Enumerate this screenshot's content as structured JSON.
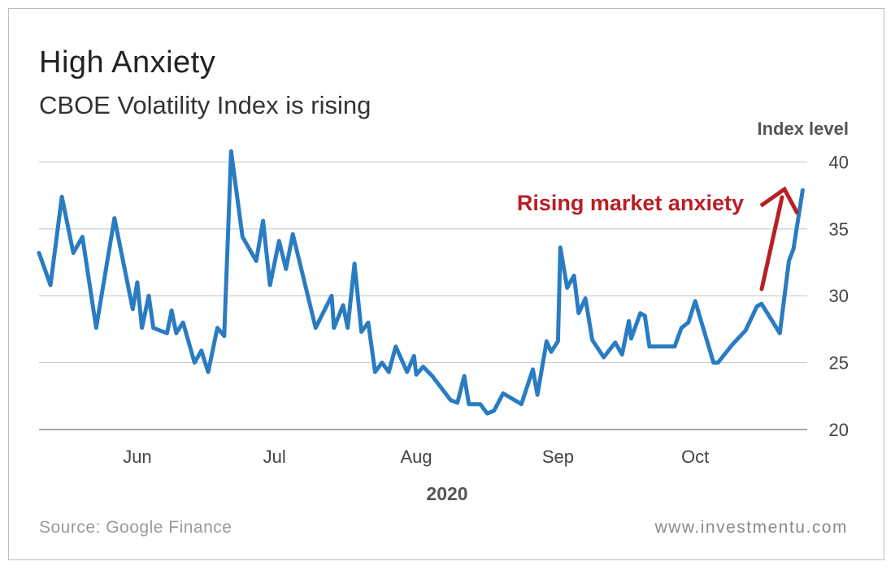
{
  "title": "High Anxiety",
  "subtitle": "CBOE Volatility Index is rising",
  "source": "Source: Google Finance",
  "website": "www.investmentu.com",
  "chart_data": {
    "type": "line",
    "ylabel": "Index level",
    "xlabel": "2020",
    "ylim": [
      20,
      41
    ],
    "yticks": [
      20,
      25,
      30,
      35,
      40
    ],
    "grid": true,
    "x_ticks": [
      {
        "label": "Jun",
        "x": 21.5
      },
      {
        "label": "Jul",
        "x": 51.5
      },
      {
        "label": "Aug",
        "x": 82.5
      },
      {
        "label": "Sep",
        "x": 113.5
      },
      {
        "label": "Oct",
        "x": 143.5
      }
    ],
    "line_color": "#2a7cc2",
    "annotation": {
      "text": "Rising market anxiety",
      "color": "#b81f25"
    },
    "series": [
      {
        "values": [
          [
            0,
            33.2
          ],
          [
            2.5,
            30.8
          ],
          [
            5,
            37.4
          ],
          [
            7.5,
            33.2
          ],
          [
            9.5,
            34.4
          ],
          [
            12.5,
            27.6
          ],
          [
            16.5,
            35.8
          ],
          [
            20.5,
            29.0
          ],
          [
            21.5,
            31.0
          ],
          [
            22.5,
            27.6
          ],
          [
            24,
            30.0
          ],
          [
            25,
            27.6
          ],
          [
            28,
            27.2
          ],
          [
            29,
            28.9
          ],
          [
            30,
            27.2
          ],
          [
            31.5,
            28.0
          ],
          [
            34,
            25.0
          ],
          [
            35.5,
            25.9
          ],
          [
            37,
            24.3
          ],
          [
            39,
            27.6
          ],
          [
            40.5,
            27.0
          ],
          [
            42,
            40.8
          ],
          [
            44.5,
            34.4
          ],
          [
            47.5,
            32.6
          ],
          [
            49,
            35.6
          ],
          [
            50.5,
            30.8
          ],
          [
            52.5,
            34.1
          ],
          [
            54,
            32.0
          ],
          [
            55.5,
            34.6
          ],
          [
            60.5,
            27.6
          ],
          [
            64,
            30.0
          ],
          [
            64.5,
            27.6
          ],
          [
            66.5,
            29.3
          ],
          [
            67.5,
            27.6
          ],
          [
            69,
            32.4
          ],
          [
            70.5,
            27.3
          ],
          [
            72,
            28.0
          ],
          [
            73.5,
            24.3
          ],
          [
            75,
            25.0
          ],
          [
            76.5,
            24.3
          ],
          [
            78,
            26.2
          ],
          [
            80.5,
            24.3
          ],
          [
            82,
            25.5
          ],
          [
            82.5,
            24.1
          ],
          [
            84,
            24.7
          ],
          [
            86,
            24.0
          ],
          [
            90,
            22.2
          ],
          [
            91.5,
            22.0
          ],
          [
            93,
            24.0
          ],
          [
            94,
            21.9
          ],
          [
            96.5,
            21.9
          ],
          [
            98,
            21.2
          ],
          [
            99.5,
            21.4
          ],
          [
            101.5,
            22.7
          ],
          [
            105.5,
            21.9
          ],
          [
            108,
            24.5
          ],
          [
            109,
            22.6
          ],
          [
            111,
            26.6
          ],
          [
            112,
            25.8
          ],
          [
            113.5,
            26.6
          ],
          [
            114,
            33.6
          ],
          [
            115.5,
            30.6
          ],
          [
            117,
            31.5
          ],
          [
            118,
            28.7
          ],
          [
            119.5,
            29.8
          ],
          [
            121,
            26.7
          ],
          [
            123.5,
            25.4
          ],
          [
            126,
            26.5
          ],
          [
            127.5,
            25.6
          ],
          [
            129,
            28.1
          ],
          [
            129.5,
            26.8
          ],
          [
            131.5,
            28.7
          ],
          [
            132.5,
            28.5
          ],
          [
            133.5,
            26.2
          ],
          [
            138,
            26.2
          ],
          [
            139,
            26.2
          ],
          [
            140.5,
            27.6
          ],
          [
            142,
            28.0
          ],
          [
            143.5,
            29.6
          ],
          [
            147.5,
            25.0
          ],
          [
            148.5,
            25.0
          ],
          [
            151.5,
            26.3
          ],
          [
            154.5,
            27.4
          ],
          [
            157,
            29.2
          ],
          [
            158,
            29.4
          ],
          [
            162,
            27.2
          ],
          [
            164,
            32.6
          ],
          [
            165,
            33.5
          ],
          [
            167,
            37.9
          ]
        ]
      }
    ]
  }
}
